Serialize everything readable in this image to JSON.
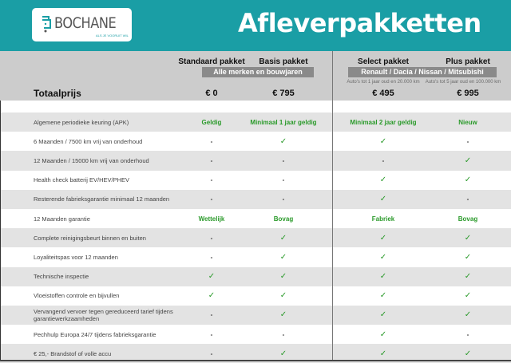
{
  "header": {
    "brand": "BOCHANE",
    "tagline": "ALS JE VOORUIT WIL",
    "title": "Afleverpakketten",
    "color": "#1a9ea5"
  },
  "columns": [
    {
      "name": "Standaard pakket",
      "price": "€ 0"
    },
    {
      "name": "Basis pakket",
      "price": "€ 795"
    },
    {
      "name": "Select pakket",
      "price": "€ 495",
      "note": "Auto's tot 1 jaar oud en 20.000 km"
    },
    {
      "name": "Plus pakket",
      "price": "€ 995",
      "note": "Auto's tot 5 jaar oud en 100.000 km"
    }
  ],
  "groups": {
    "left": "Alle merken en bouwjaren",
    "right": "Renault / Dacia / Nissan / Mitsubishi"
  },
  "total_label": "Totaalprijs",
  "rows": [
    {
      "label": "Algemene periodieke keuring (APK)",
      "values": [
        "Geldig",
        "Minimaal 1 jaar geldig",
        "Minimaal 2 jaar geldig",
        "Nieuw"
      ]
    },
    {
      "label": "6 Maanden / 7500 km vrij van onderhoud",
      "values": [
        "-",
        "✓",
        "✓",
        "-"
      ]
    },
    {
      "label": "12 Maanden / 15000 km vrij van onderhoud",
      "values": [
        "-",
        "-",
        "-",
        "✓"
      ]
    },
    {
      "label": "Health check batterij EV/HEV/PHEV",
      "values": [
        "-",
        "-",
        "✓",
        "✓"
      ]
    },
    {
      "label": "Resterende fabrieksgarantie minimaal 12 maanden",
      "values": [
        "-",
        "-",
        "✓",
        "-"
      ]
    },
    {
      "label": "12 Maanden  garantie",
      "values": [
        "Wettelijk",
        "Bovag",
        "Fabriek",
        "Bovag"
      ]
    },
    {
      "label": "Complete reinigingsbeurt binnen en buiten",
      "values": [
        "-",
        "✓",
        "✓",
        "✓"
      ]
    },
    {
      "label": "Loyaliteitspas voor 12 maanden",
      "values": [
        "-",
        "✓",
        "✓",
        "✓"
      ]
    },
    {
      "label": "Technische inspectie",
      "values": [
        "✓",
        "✓",
        "✓",
        "✓"
      ]
    },
    {
      "label": "Vloeistoffen controle en bijvullen",
      "values": [
        "✓",
        "✓",
        "✓",
        "✓"
      ]
    },
    {
      "label": "Vervangend vervoer tegen gereduceerd tarief tijdens garantiewerkzaamheden",
      "values": [
        "-",
        "✓",
        "✓",
        "✓"
      ]
    },
    {
      "label": "Pechhulp Europa 24/7 tijdens fabrieksgarantie",
      "values": [
        "-",
        "-",
        "✓",
        "-"
      ]
    },
    {
      "label": "€ 25,- Brandstof of  volle accu",
      "values": [
        "-",
        "✓",
        "✓",
        "✓"
      ]
    }
  ]
}
